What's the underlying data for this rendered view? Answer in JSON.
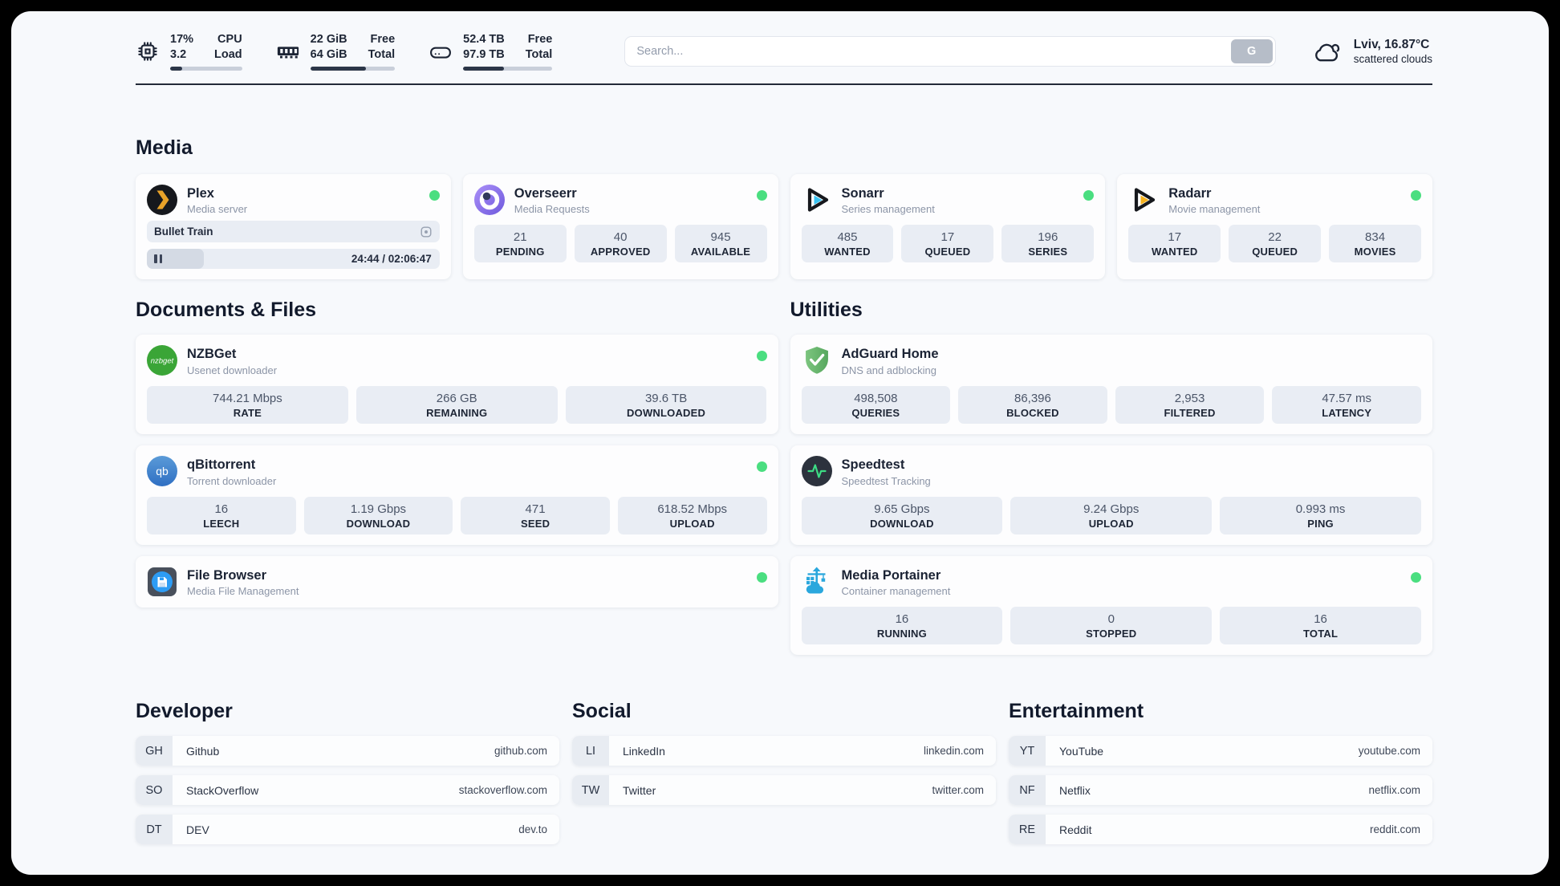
{
  "colors": {
    "status_online": "#4ade80",
    "plex_accent": "#e8a229",
    "sonarr_accent": "#39c3f2",
    "radarr_accent": "#f6b21e",
    "portainer_accent": "#2aa7dd",
    "speedtest_accent": "#3ddc84"
  },
  "header": {
    "cpu": {
      "value_top": "17%",
      "value_bottom": "3.2",
      "label_top": "CPU",
      "label_bottom": "Load",
      "progress": 17
    },
    "ram": {
      "value_top": "22 GiB",
      "value_bottom": "64 GiB",
      "label_top": "Free",
      "label_bottom": "Total",
      "progress": 66
    },
    "disk": {
      "value_top": "52.4 TB",
      "value_bottom": "97.9 TB",
      "label_top": "Free",
      "label_bottom": "Total",
      "progress": 46
    },
    "search": {
      "placeholder": "Search...",
      "button_label": "G"
    },
    "weather": {
      "location_temp": "Lviv, 16.87°C",
      "condition": "scattered clouds"
    }
  },
  "media": {
    "title": "Media",
    "plex": {
      "name": "Plex",
      "subtitle": "Media server",
      "now_playing": "Bullet Train",
      "time": "24:44 / 02:06:47",
      "progress_percent": 19.5
    },
    "overseerr": {
      "name": "Overseerr",
      "subtitle": "Media Requests",
      "stats": [
        {
          "value": "21",
          "label": "PENDING"
        },
        {
          "value": "40",
          "label": "APPROVED"
        },
        {
          "value": "945",
          "label": "AVAILABLE"
        }
      ]
    },
    "sonarr": {
      "name": "Sonarr",
      "subtitle": "Series management",
      "stats": [
        {
          "value": "485",
          "label": "WANTED"
        },
        {
          "value": "17",
          "label": "QUEUED"
        },
        {
          "value": "196",
          "label": "SERIES"
        }
      ]
    },
    "radarr": {
      "name": "Radarr",
      "subtitle": "Movie management",
      "stats": [
        {
          "value": "17",
          "label": "WANTED"
        },
        {
          "value": "22",
          "label": "QUEUED"
        },
        {
          "value": "834",
          "label": "MOVIES"
        }
      ]
    }
  },
  "documents": {
    "title": "Documents & Files",
    "nzbget": {
      "name": "NZBGet",
      "subtitle": "Usenet downloader",
      "stats": [
        {
          "value": "744.21 Mbps",
          "label": "RATE"
        },
        {
          "value": "266 GB",
          "label": "REMAINING"
        },
        {
          "value": "39.6 TB",
          "label": "DOWNLOADED"
        }
      ]
    },
    "qbittorrent": {
      "name": "qBittorrent",
      "subtitle": "Torrent downloader",
      "stats": [
        {
          "value": "16",
          "label": "LEECH"
        },
        {
          "value": "1.19 Gbps",
          "label": "DOWNLOAD"
        },
        {
          "value": "471",
          "label": "SEED"
        },
        {
          "value": "618.52 Mbps",
          "label": "UPLOAD"
        }
      ]
    },
    "filebrowser": {
      "name": "File Browser",
      "subtitle": "Media File Management"
    }
  },
  "utilities": {
    "title": "Utilities",
    "adguard": {
      "name": "AdGuard Home",
      "subtitle": "DNS and adblocking",
      "stats": [
        {
          "value": "498,508",
          "label": "QUERIES"
        },
        {
          "value": "86,396",
          "label": "BLOCKED"
        },
        {
          "value": "2,953",
          "label": "FILTERED"
        },
        {
          "value": "47.57 ms",
          "label": "LATENCY"
        }
      ]
    },
    "speedtest": {
      "name": "Speedtest",
      "subtitle": "Speedtest Tracking",
      "stats": [
        {
          "value": "9.65 Gbps",
          "label": "DOWNLOAD"
        },
        {
          "value": "9.24 Gbps",
          "label": "UPLOAD"
        },
        {
          "value": "0.993 ms",
          "label": "PING"
        }
      ]
    },
    "portainer": {
      "name": "Media Portainer",
      "subtitle": "Container management",
      "stats": [
        {
          "value": "16",
          "label": "RUNNING"
        },
        {
          "value": "0",
          "label": "STOPPED"
        },
        {
          "value": "16",
          "label": "TOTAL"
        }
      ]
    }
  },
  "links": {
    "developer": {
      "title": "Developer",
      "items": [
        {
          "abbr": "GH",
          "name": "Github",
          "url": "github.com"
        },
        {
          "abbr": "SO",
          "name": "StackOverflow",
          "url": "stackoverflow.com"
        },
        {
          "abbr": "DT",
          "name": "DEV",
          "url": "dev.to"
        }
      ]
    },
    "social": {
      "title": "Social",
      "items": [
        {
          "abbr": "LI",
          "name": "LinkedIn",
          "url": "linkedin.com"
        },
        {
          "abbr": "TW",
          "name": "Twitter",
          "url": "twitter.com"
        }
      ]
    },
    "entertainment": {
      "title": "Entertainment",
      "items": [
        {
          "abbr": "YT",
          "name": "YouTube",
          "url": "youtube.com"
        },
        {
          "abbr": "NF",
          "name": "Netflix",
          "url": "netflix.com"
        },
        {
          "abbr": "RE",
          "name": "Reddit",
          "url": "reddit.com"
        }
      ]
    }
  }
}
